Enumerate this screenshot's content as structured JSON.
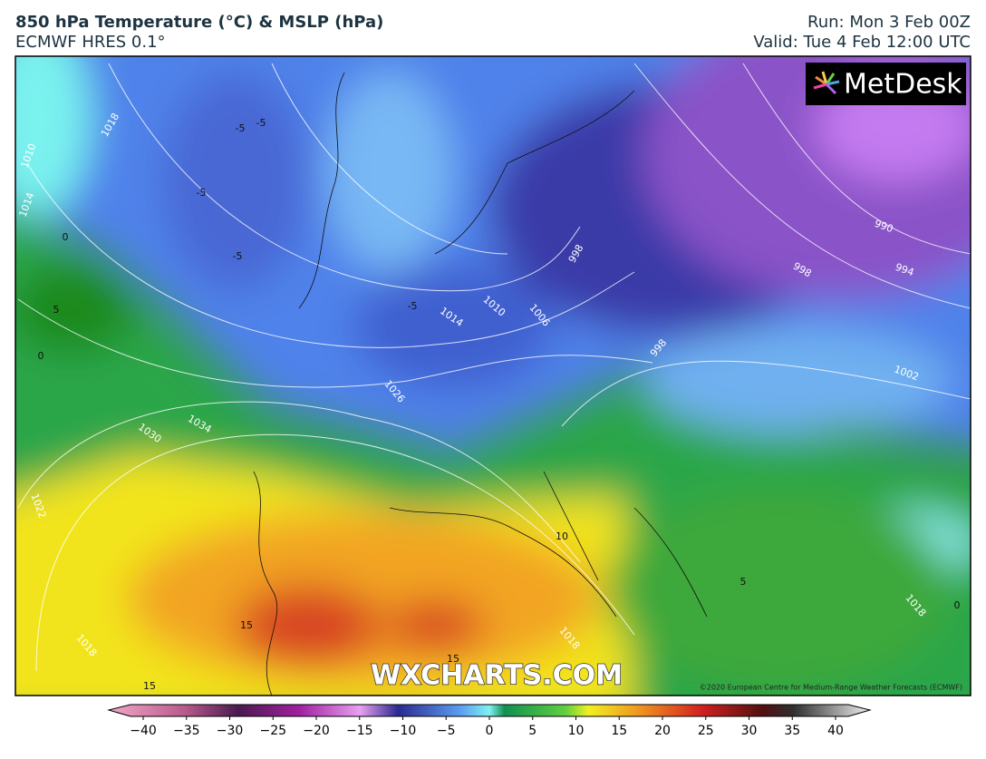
{
  "header": {
    "title": "850 hPa Temperature (°C) & MSLP (hPa)",
    "subtitle": "ECMWF HRES 0.1°",
    "run": "Run: Mon 3 Feb 00Z",
    "valid": "Valid: Tue 4 Feb 12:00 UTC"
  },
  "map": {
    "logo": "MetDesk",
    "watermark": "WXCHARTS.COM",
    "copyright": "©2020 European Centre for Medium-Range Weather Forecasts (ECMWF)",
    "isobar_labels": [
      "1018",
      "1010",
      "1014",
      "1026",
      "1030",
      "1034",
      "1022",
      "1018",
      "998",
      "1006",
      "1010",
      "1014",
      "990",
      "994",
      "998",
      "1002",
      "998",
      "1018",
      "1018"
    ],
    "temperature_labels": [
      "-5",
      "-5",
      "-5",
      "-5",
      "-5",
      "0",
      "5",
      "0",
      "10",
      "15",
      "15",
      "15",
      "5",
      "0"
    ]
  },
  "colorbar": {
    "ticks": [
      {
        "value": -40,
        "label": "−40"
      },
      {
        "value": -35,
        "label": "−35"
      },
      {
        "value": -30,
        "label": "−30"
      },
      {
        "value": -25,
        "label": "−25"
      },
      {
        "value": -20,
        "label": "−20"
      },
      {
        "value": -15,
        "label": "−15"
      },
      {
        "value": -10,
        "label": "−10"
      },
      {
        "value": -5,
        "label": "−5"
      },
      0,
      5,
      10,
      15,
      20,
      25,
      30,
      35,
      40
    ]
  }
}
